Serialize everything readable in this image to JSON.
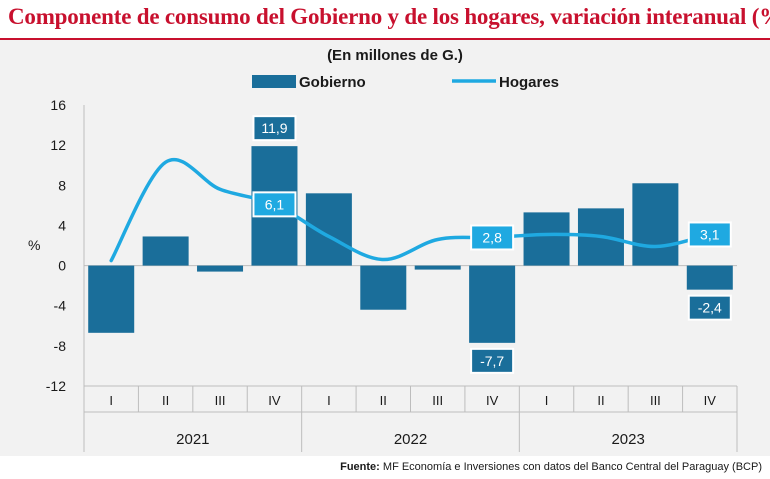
{
  "title": "Componente de consumo del Gobierno y de los hogares, variación interanual (%)",
  "source_label": "Fuente:",
  "source_text": "MF Economía e Inversiones con datos del Banco Central del Paraguay (BCP)",
  "colors": {
    "title": "#c8102e",
    "bar": "#1a6e9a",
    "line": "#1fa9e1",
    "background": "#f2f2f2"
  },
  "chart_data": {
    "type": "bar+line",
    "subtitle": "(En millones de G.)",
    "ylabel": "%",
    "ylim": [
      -12,
      16
    ],
    "yticks": [
      -12,
      -8,
      -4,
      0,
      4,
      8,
      12,
      16
    ],
    "categories": [
      "I",
      "II",
      "III",
      "IV",
      "I",
      "II",
      "III",
      "IV",
      "I",
      "II",
      "III",
      "IV"
    ],
    "years": [
      "2021",
      "2022",
      "2023"
    ],
    "series": [
      {
        "name": "Gobierno",
        "kind": "bar",
        "values": [
          -6.7,
          2.9,
          -0.6,
          11.9,
          7.2,
          -4.4,
          -0.4,
          -7.7,
          5.3,
          5.7,
          8.2,
          -2.4
        ]
      },
      {
        "name": "Hogares",
        "kind": "line",
        "values": [
          0.5,
          10.3,
          7.6,
          6.1,
          2.9,
          0.6,
          2.6,
          2.8,
          3.1,
          2.9,
          1.9,
          3.1
        ]
      }
    ],
    "data_labels": [
      {
        "series": "Gobierno",
        "index": 3,
        "text": "11,9"
      },
      {
        "series": "Gobierno",
        "index": 7,
        "text": "-7,7"
      },
      {
        "series": "Gobierno",
        "index": 11,
        "text": "-2,4"
      },
      {
        "series": "Hogares",
        "index": 3,
        "text": "6,1"
      },
      {
        "series": "Hogares",
        "index": 7,
        "text": "2,8"
      },
      {
        "series": "Hogares",
        "index": 11,
        "text": "3,1"
      }
    ]
  }
}
